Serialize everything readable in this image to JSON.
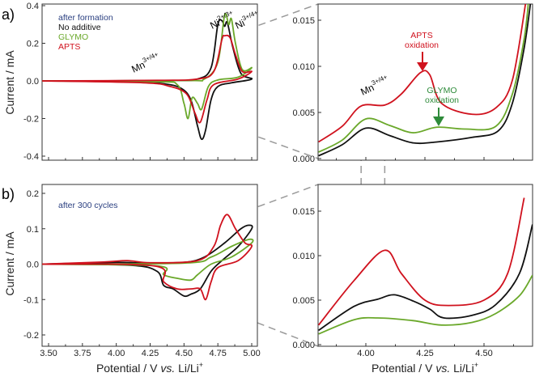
{
  "colors": {
    "no_additive": "#111111",
    "glymo": "#6aa82a",
    "apts": "#d0121e",
    "note": "#2a3f80",
    "glymo_arrow": "#2e8b3a",
    "guide": "#999999"
  },
  "labels": {
    "panel_a": "a)",
    "panel_b": "b)",
    "ylabel": "Current / mA",
    "xlabel_pre": "Potential / V ",
    "xlabel_vs": "vs.",
    "xlabel_post": " Li/Li",
    "xlabel_sup": "+",
    "note_a": "after formation",
    "note_b": "after 300 cycles",
    "mn_base": "Mn",
    "mn_sup": "3+/4+",
    "ni1_base": "Ni",
    "ni1_sup": "2+/3+",
    "ni2_base": "Ni",
    "ni2_sup": "3+/4+",
    "apts_ox_1": "APTS",
    "apts_ox_2": "oxidation",
    "glymo_ox_1": "GLYMO",
    "glymo_ox_2": "oxidation"
  },
  "chart_data": [
    {
      "panel": "a-left",
      "type": "line",
      "xlim": [
        3.45,
        5.05
      ],
      "ylim": [
        -0.4,
        0.4
      ],
      "yticks": [
        "0.4",
        "0.2",
        "0.0",
        "-0.2",
        "-0.4"
      ],
      "xticks": [],
      "legend": [
        "No additive",
        "GLYMO",
        "APTS"
      ],
      "legend_placement": "top-left",
      "series": [
        {
          "name": "No additive",
          "color": "#111111",
          "points": [
            [
              3.45,
              0
            ],
            [
              4.4,
              0.002
            ],
            [
              4.6,
              0.01
            ],
            [
              4.7,
              0.07
            ],
            [
              4.75,
              0.3
            ],
            [
              4.78,
              0.32
            ],
            [
              4.8,
              0.29
            ],
            [
              4.82,
              0.31
            ],
            [
              4.86,
              0.18
            ],
            [
              4.92,
              0.04
            ],
            [
              5.0,
              0.01
            ],
            [
              4.85,
              -0.01
            ],
            [
              4.75,
              -0.03
            ],
            [
              4.7,
              -0.1
            ],
            [
              4.66,
              -0.26
            ],
            [
              4.63,
              -0.31
            ],
            [
              4.6,
              -0.24
            ],
            [
              4.55,
              -0.1
            ],
            [
              4.48,
              -0.04
            ],
            [
              4.35,
              -0.015
            ],
            [
              4.1,
              -0.004
            ],
            [
              3.45,
              0
            ]
          ]
        },
        {
          "name": "GLYMO",
          "color": "#6aa82a",
          "points": [
            [
              3.45,
              0
            ],
            [
              4.5,
              0.002
            ],
            [
              4.65,
              0.01
            ],
            [
              4.75,
              0.1
            ],
            [
              4.8,
              0.35
            ],
            [
              4.83,
              0.3
            ],
            [
              4.85,
              0.33
            ],
            [
              4.88,
              0.2
            ],
            [
              4.93,
              0.06
            ],
            [
              5.0,
              0.07
            ],
            [
              4.9,
              0.02
            ],
            [
              4.75,
              0.005
            ],
            [
              4.68,
              -0.03
            ],
            [
              4.63,
              -0.15
            ],
            [
              4.6,
              -0.12
            ],
            [
              4.56,
              -0.09
            ],
            [
              4.53,
              -0.2
            ],
            [
              4.5,
              -0.12
            ],
            [
              4.45,
              -0.02
            ],
            [
              4.3,
              -0.005
            ],
            [
              3.45,
              0
            ]
          ]
        },
        {
          "name": "APTS",
          "color": "#d0121e",
          "points": [
            [
              3.45,
              0
            ],
            [
              4.3,
              0.003
            ],
            [
              4.6,
              0.01
            ],
            [
              4.72,
              0.05
            ],
            [
              4.78,
              0.22
            ],
            [
              4.8,
              0.24
            ],
            [
              4.84,
              0.23
            ],
            [
              4.88,
              0.14
            ],
            [
              4.93,
              0.05
            ],
            [
              5.0,
              0.05
            ],
            [
              4.9,
              0.01
            ],
            [
              4.72,
              -0.02
            ],
            [
              4.67,
              -0.1
            ],
            [
              4.62,
              -0.22
            ],
            [
              4.58,
              -0.17
            ],
            [
              4.52,
              -0.07
            ],
            [
              4.4,
              -0.03
            ],
            [
              4.2,
              -0.01
            ],
            [
              3.45,
              0
            ]
          ]
        }
      ]
    },
    {
      "panel": "a-right",
      "type": "line",
      "xlim": [
        3.8,
        4.705
      ],
      "ylim": [
        0,
        0.0165
      ],
      "yticks": [
        "0.015",
        "0.010",
        "0.005",
        "0.000"
      ],
      "xticks": [],
      "series": [
        {
          "name": "No additive",
          "color": "#111111",
          "points": [
            [
              3.8,
              0.0003
            ],
            [
              3.9,
              0.0015
            ],
            [
              4.0,
              0.0033
            ],
            [
              4.1,
              0.0025
            ],
            [
              4.2,
              0.0017
            ],
            [
              4.3,
              0.0018
            ],
            [
              4.45,
              0.0023
            ],
            [
              4.56,
              0.003
            ],
            [
              4.62,
              0.006
            ],
            [
              4.67,
              0.012
            ],
            [
              4.7,
              0.0175
            ]
          ]
        },
        {
          "name": "GLYMO",
          "color": "#6aa82a",
          "points": [
            [
              3.8,
              0.0007
            ],
            [
              3.9,
              0.002
            ],
            [
              4.0,
              0.0043
            ],
            [
              4.1,
              0.0036
            ],
            [
              4.2,
              0.0028
            ],
            [
              4.3,
              0.0034
            ],
            [
              4.42,
              0.0032
            ],
            [
              4.55,
              0.0035
            ],
            [
              4.62,
              0.007
            ],
            [
              4.67,
              0.013
            ],
            [
              4.69,
              0.0175
            ]
          ]
        },
        {
          "name": "APTS",
          "color": "#d0121e",
          "points": [
            [
              3.8,
              0.0018
            ],
            [
              3.9,
              0.0035
            ],
            [
              3.98,
              0.0057
            ],
            [
              4.08,
              0.0058
            ],
            [
              4.15,
              0.007
            ],
            [
              4.23,
              0.0093
            ],
            [
              4.27,
              0.0091
            ],
            [
              4.32,
              0.006
            ],
            [
              4.45,
              0.0048
            ],
            [
              4.55,
              0.0055
            ],
            [
              4.62,
              0.0085
            ],
            [
              4.68,
              0.0175
            ]
          ]
        }
      ]
    },
    {
      "panel": "b-left",
      "type": "line",
      "xlim": [
        3.45,
        5.05
      ],
      "ylim": [
        -0.2,
        0.2
      ],
      "yticks": [
        "0.2",
        "0.1",
        "0.0",
        "-0.1",
        "-0.2"
      ],
      "xticks": [
        "3.50",
        "3.75",
        "4.00",
        "4.25",
        "4.50",
        "4.75",
        "5.00"
      ],
      "series": [
        {
          "name": "No additive",
          "color": "#111111",
          "points": [
            [
              3.45,
              0
            ],
            [
              4.0,
              0.005
            ],
            [
              4.2,
              0.003
            ],
            [
              4.5,
              0.005
            ],
            [
              4.65,
              0.02
            ],
            [
              4.8,
              0.06
            ],
            [
              4.92,
              0.1
            ],
            [
              4.98,
              0.11
            ],
            [
              5.0,
              0.1
            ],
            [
              4.9,
              0.05
            ],
            [
              4.78,
              0.01
            ],
            [
              4.7,
              -0.02
            ],
            [
              4.62,
              -0.07
            ],
            [
              4.55,
              -0.085
            ],
            [
              4.5,
              -0.09
            ],
            [
              4.42,
              -0.07
            ],
            [
              4.35,
              -0.06
            ],
            [
              4.3,
              -0.02
            ],
            [
              4.1,
              -0.003
            ],
            [
              3.45,
              0
            ]
          ]
        },
        {
          "name": "GLYMO",
          "color": "#6aa82a",
          "points": [
            [
              3.45,
              0
            ],
            [
              4.5,
              0.003
            ],
            [
              4.7,
              0.02
            ],
            [
              4.85,
              0.05
            ],
            [
              4.98,
              0.07
            ],
            [
              5.0,
              0.06
            ],
            [
              4.85,
              0.02
            ],
            [
              4.7,
              0.0
            ],
            [
              4.6,
              -0.03
            ],
            [
              4.55,
              -0.045
            ],
            [
              4.45,
              -0.04
            ],
            [
              4.35,
              -0.03
            ],
            [
              4.3,
              -0.005
            ],
            [
              3.45,
              0
            ]
          ]
        },
        {
          "name": "APTS",
          "color": "#d0121e",
          "points": [
            [
              3.45,
              0
            ],
            [
              3.9,
              0.006
            ],
            [
              4.08,
              0.01
            ],
            [
              4.25,
              0.004
            ],
            [
              4.6,
              0.01
            ],
            [
              4.72,
              0.05
            ],
            [
              4.77,
              0.11
            ],
            [
              4.82,
              0.14
            ],
            [
              4.88,
              0.1
            ],
            [
              4.95,
              0.06
            ],
            [
              5.0,
              0.05
            ],
            [
              4.9,
              0.01
            ],
            [
              4.75,
              -0.01
            ],
            [
              4.7,
              -0.05
            ],
            [
              4.66,
              -0.1
            ],
            [
              4.62,
              -0.07
            ],
            [
              4.55,
              -0.07
            ],
            [
              4.45,
              -0.07
            ],
            [
              4.35,
              -0.05
            ],
            [
              4.28,
              -0.005
            ],
            [
              3.45,
              0
            ]
          ]
        }
      ]
    },
    {
      "panel": "b-right",
      "type": "line",
      "xlim": [
        3.8,
        4.705
      ],
      "ylim": [
        0,
        0.0165
      ],
      "yticks": [
        "0.015",
        "0.010",
        "0.005",
        "0.000"
      ],
      "xticks": [
        "4.00",
        "4.25",
        "4.50"
      ],
      "series": [
        {
          "name": "No additive",
          "color": "#111111",
          "points": [
            [
              3.8,
              0.0016
            ],
            [
              3.95,
              0.0043
            ],
            [
              4.05,
              0.0051
            ],
            [
              4.12,
              0.0056
            ],
            [
              4.2,
              0.0049
            ],
            [
              4.27,
              0.004
            ],
            [
              4.33,
              0.003
            ],
            [
              4.45,
              0.0033
            ],
            [
              4.55,
              0.0045
            ],
            [
              4.65,
              0.008
            ],
            [
              4.705,
              0.0135
            ]
          ]
        },
        {
          "name": "GLYMO",
          "color": "#6aa82a",
          "points": [
            [
              3.8,
              0.0012
            ],
            [
              3.95,
              0.0028
            ],
            [
              4.05,
              0.003
            ],
            [
              4.2,
              0.0027
            ],
            [
              4.32,
              0.0022
            ],
            [
              4.45,
              0.0025
            ],
            [
              4.55,
              0.0035
            ],
            [
              4.65,
              0.0055
            ],
            [
              4.705,
              0.0078
            ]
          ]
        },
        {
          "name": "APTS",
          "color": "#d0121e",
          "points": [
            [
              3.8,
              0.0022
            ],
            [
              3.95,
              0.0072
            ],
            [
              4.08,
              0.0106
            ],
            [
              4.15,
              0.008
            ],
            [
              4.25,
              0.005
            ],
            [
              4.35,
              0.0044
            ],
            [
              4.5,
              0.005
            ],
            [
              4.6,
              0.008
            ],
            [
              4.67,
              0.0165
            ]
          ]
        }
      ]
    }
  ]
}
